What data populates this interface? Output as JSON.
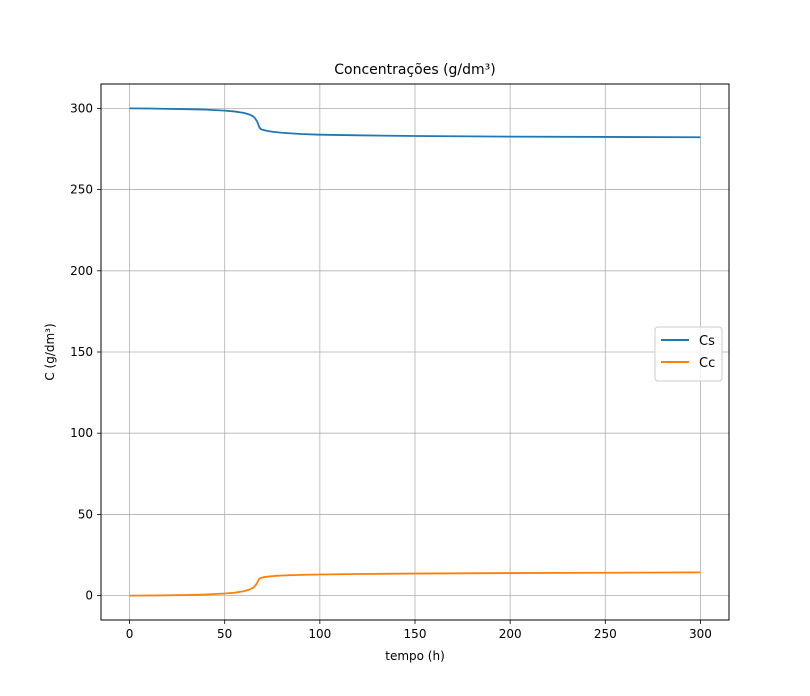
{
  "chart_data": {
    "type": "line",
    "title": "Concentrações (g/dm³)",
    "xlabel": "tempo (h)",
    "ylabel": "C (g/dm³)",
    "xlim": [
      -15,
      315
    ],
    "ylim": [
      -15,
      315
    ],
    "xticks": [
      0,
      50,
      100,
      150,
      200,
      250,
      300
    ],
    "yticks": [
      0,
      50,
      100,
      150,
      200,
      250,
      300
    ],
    "grid": true,
    "legend_position": "center-right",
    "series": [
      {
        "name": "Cs",
        "color": "#1f77b4",
        "x": [
          0,
          10,
          20,
          30,
          40,
          50,
          55,
          60,
          63,
          65,
          66,
          67,
          68,
          68.5,
          69,
          70,
          72,
          75,
          80,
          90,
          100,
          120,
          150,
          200,
          250,
          300
        ],
        "y": [
          300,
          299.9,
          299.7,
          299.5,
          299.2,
          298.6,
          298.1,
          297.2,
          296.2,
          295.0,
          293.8,
          292.0,
          289.0,
          287.8,
          287.2,
          286.8,
          286.2,
          285.6,
          285.0,
          284.2,
          283.8,
          283.4,
          283.0,
          282.6,
          282.4,
          282.2
        ]
      },
      {
        "name": "Cc",
        "color": "#ff7f0e",
        "x": [
          0,
          10,
          20,
          30,
          40,
          50,
          55,
          60,
          63,
          65,
          66,
          67,
          68,
          68.5,
          69,
          70,
          72,
          75,
          80,
          90,
          100,
          120,
          150,
          200,
          250,
          300
        ],
        "y": [
          0,
          0.1,
          0.2,
          0.4,
          0.7,
          1.3,
          1.8,
          2.7,
          3.7,
          4.9,
          6.0,
          7.8,
          10.0,
          10.6,
          10.9,
          11.2,
          11.6,
          12.0,
          12.4,
          12.8,
          13.0,
          13.3,
          13.6,
          13.9,
          14.1,
          14.3
        ]
      }
    ]
  }
}
